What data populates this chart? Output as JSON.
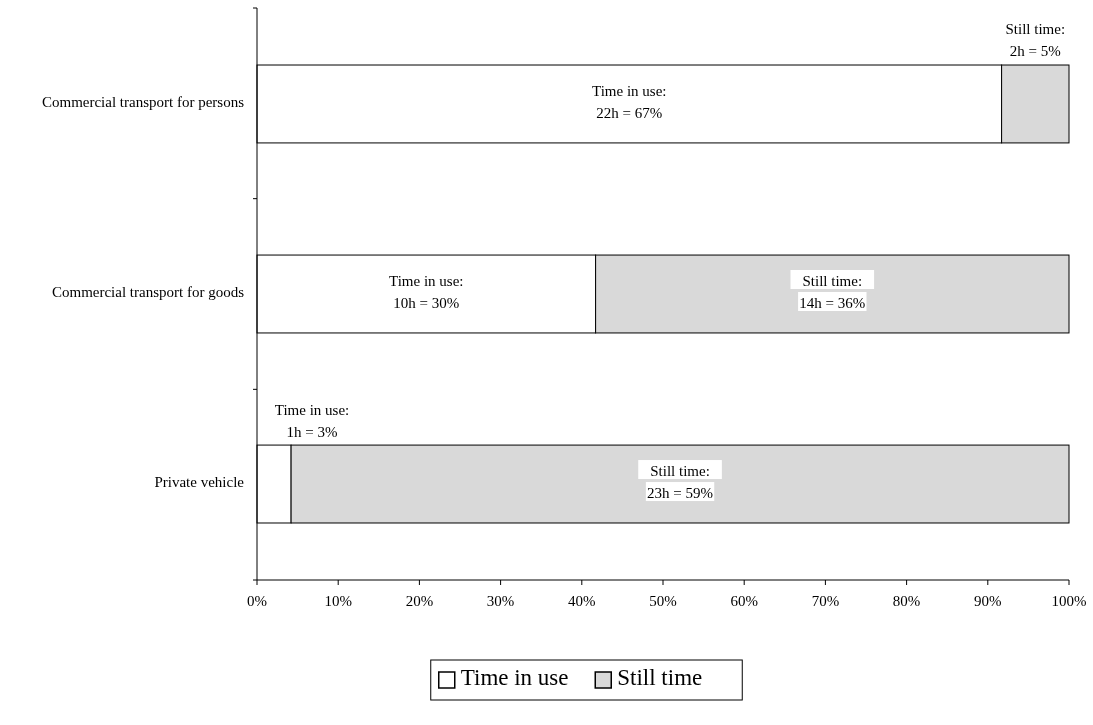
{
  "chart_data": {
    "type": "bar",
    "orientation": "horizontal",
    "stacked": true,
    "categories": [
      "Commercial transport for persons",
      "Commercial transport for goods",
      "Private vehicle"
    ],
    "series": [
      {
        "name": "Time in use",
        "color": "#ffffff",
        "values": [
          91.7,
          41.7,
          4.2
        ]
      },
      {
        "name": "Still time",
        "color": "#d9d9d9",
        "values": [
          8.3,
          58.3,
          95.8
        ]
      }
    ],
    "annotations": [
      "Time in use:\n22h = 67%",
      "Still time:\n2h = 5%",
      "Time in use:\n10h = 30%",
      "Still time:\n14h = 36%",
      "Time in use:\n1h = 3%",
      "Still time:\n23h = 59%"
    ],
    "xlim": [
      0,
      100
    ],
    "xticks": [
      {
        "value": 0,
        "label": "0%"
      },
      {
        "value": 10,
        "label": "10%"
      },
      {
        "value": 20,
        "label": "20%"
      },
      {
        "value": 30,
        "label": "30%"
      },
      {
        "value": 40,
        "label": "40%"
      },
      {
        "value": 50,
        "label": "50%"
      },
      {
        "value": 60,
        "label": "60%"
      },
      {
        "value": 70,
        "label": "70%"
      },
      {
        "value": 80,
        "label": "80%"
      },
      {
        "value": 90,
        "label": "90%"
      },
      {
        "value": 100,
        "label": "100%"
      }
    ],
    "grid": false,
    "legend": "bottom"
  }
}
